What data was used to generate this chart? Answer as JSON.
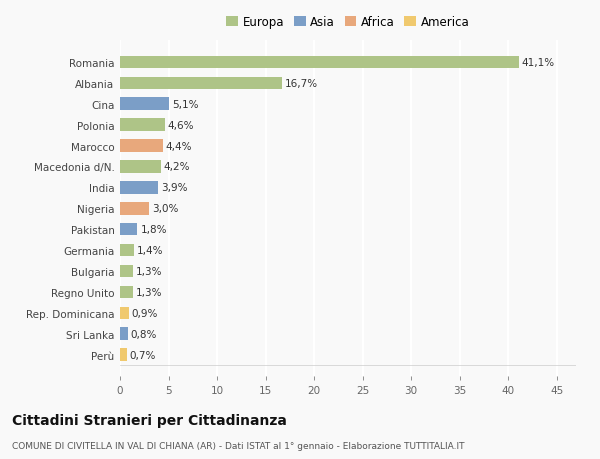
{
  "categories": [
    "Romania",
    "Albania",
    "Cina",
    "Polonia",
    "Marocco",
    "Macedonia d/N.",
    "India",
    "Nigeria",
    "Pakistan",
    "Germania",
    "Bulgaria",
    "Regno Unito",
    "Rep. Dominicana",
    "Sri Lanka",
    "Perù"
  ],
  "values": [
    41.1,
    16.7,
    5.1,
    4.6,
    4.4,
    4.2,
    3.9,
    3.0,
    1.8,
    1.4,
    1.3,
    1.3,
    0.9,
    0.8,
    0.7
  ],
  "labels": [
    "41,1%",
    "16,7%",
    "5,1%",
    "4,6%",
    "4,4%",
    "4,2%",
    "3,9%",
    "3,0%",
    "1,8%",
    "1,4%",
    "1,3%",
    "1,3%",
    "0,9%",
    "0,8%",
    "0,7%"
  ],
  "colors": [
    "#aec487",
    "#aec487",
    "#7b9ec7",
    "#aec487",
    "#e8a87c",
    "#aec487",
    "#7b9ec7",
    "#e8a87c",
    "#7b9ec7",
    "#aec487",
    "#aec487",
    "#aec487",
    "#f0c96e",
    "#7b9ec7",
    "#f0c96e"
  ],
  "legend_labels": [
    "Europa",
    "Asia",
    "Africa",
    "America"
  ],
  "legend_colors": [
    "#aec487",
    "#7b9ec7",
    "#e8a87c",
    "#f0c96e"
  ],
  "title": "Cittadini Stranieri per Cittadinanza",
  "subtitle": "COMUNE DI CIVITELLA IN VAL DI CHIANA (AR) - Dati ISTAT al 1° gennaio - Elaborazione TUTTITALIA.IT",
  "xlabel_ticks": [
    0,
    5,
    10,
    15,
    20,
    25,
    30,
    35,
    40,
    45
  ],
  "xlim": [
    0,
    47
  ],
  "bg_color": "#f9f9f9",
  "grid_color": "#ffffff",
  "bar_height": 0.6
}
